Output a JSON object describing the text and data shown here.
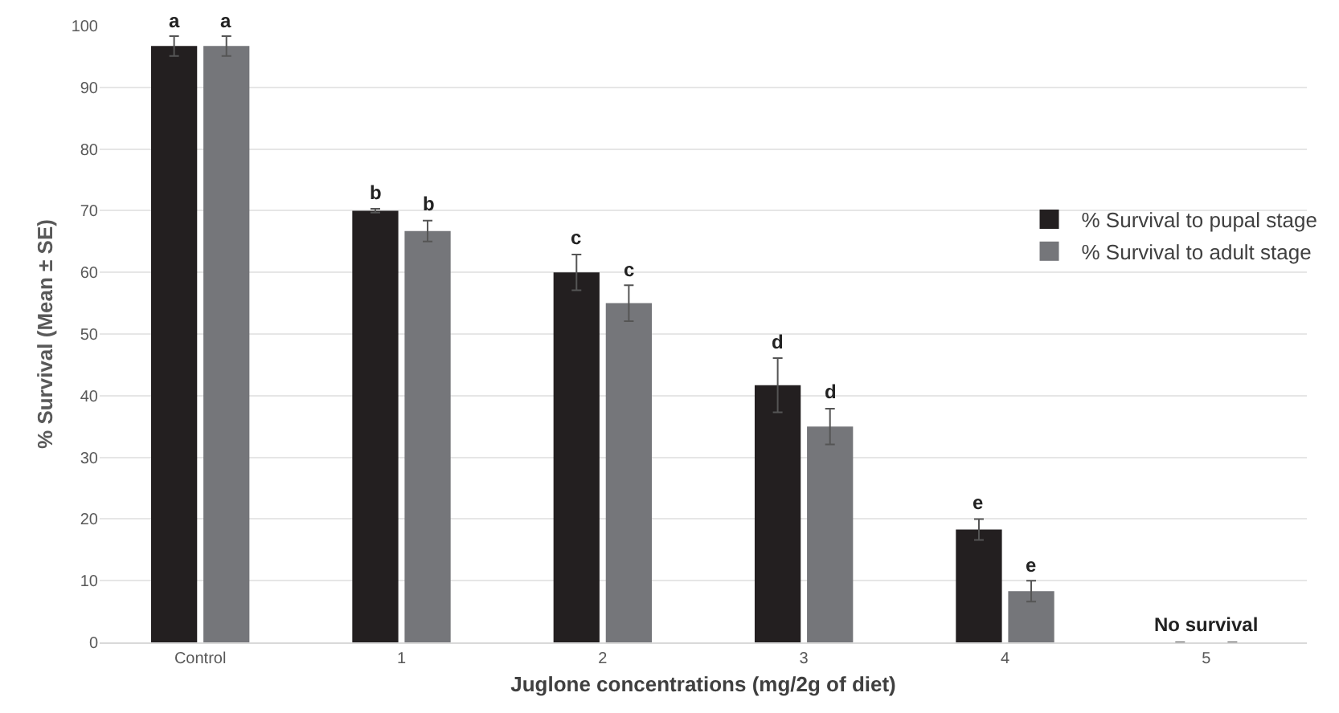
{
  "chart_data": {
    "type": "bar",
    "xlabel": "Juglone concentrations (mg/2g of diet)",
    "ylabel": "% Survival (Mean ± SE)",
    "categories": [
      "Control",
      "1",
      "2",
      "3",
      "4",
      "5"
    ],
    "series": [
      {
        "name": "% Survival to pupal stage",
        "color": "#231f20",
        "values": [
          96.7,
          70,
          60,
          41.7,
          18.3,
          0
        ],
        "errors": [
          1.6,
          0.3,
          2.9,
          4.4,
          1.7,
          null
        ],
        "value_labels": [
          "a",
          "b",
          "c",
          "d",
          "e",
          null
        ]
      },
      {
        "name": "% Survival to adult stage",
        "color": "#75767a",
        "values": [
          96.7,
          66.7,
          55,
          35,
          8.3,
          0
        ],
        "errors": [
          1.6,
          1.7,
          2.9,
          2.9,
          1.7,
          null
        ],
        "value_labels": [
          "a",
          "b",
          "c",
          "d",
          "e",
          null
        ]
      }
    ],
    "annotations": [
      {
        "text": "No survival",
        "x": "5",
        "y": 0
      }
    ],
    "ylim": [
      0,
      100
    ],
    "yticks": [
      0,
      10,
      20,
      30,
      40,
      50,
      60,
      70,
      80,
      90,
      100
    ],
    "grid": "y",
    "legend": "right"
  }
}
